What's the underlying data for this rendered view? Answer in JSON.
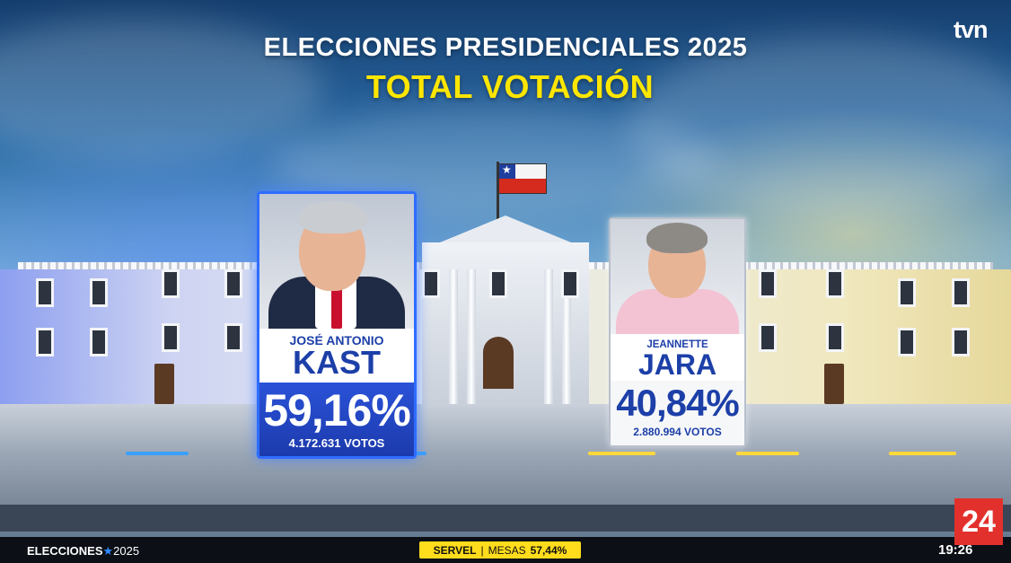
{
  "broadcast": {
    "channel_logo": "tvn",
    "title": "ELECCIONES PRESIDENCIALES 2025",
    "subtitle": "TOTAL VOTACIÓN"
  },
  "candidates": [
    {
      "first_name": "JOSÉ ANTONIO",
      "last_name": "KAST",
      "percentage": "59,16%",
      "votes": "4.172.631 VOTOS",
      "highlight_color": "#2f6dff",
      "leading": true
    },
    {
      "first_name": "JEANNETTE",
      "last_name": "JARA",
      "percentage": "40,84%",
      "votes": "2.880.994 VOTOS",
      "highlight_color": "#b8c0cc",
      "leading": false
    }
  ],
  "ticker": {
    "program": "ELECCIONES",
    "star": "★",
    "year": "2025",
    "servel_label": "SERVEL",
    "separator": "|",
    "mesas_label": "MESAS",
    "mesas_value": "57,44%",
    "clock": "19:26"
  },
  "channel_badge": "24",
  "colors": {
    "title": "#ffffff",
    "subtitle": "#ffe600",
    "name": "#1c3fa8",
    "servel_bg": "#ffdc1c",
    "badge_bg": "#e2312c"
  }
}
